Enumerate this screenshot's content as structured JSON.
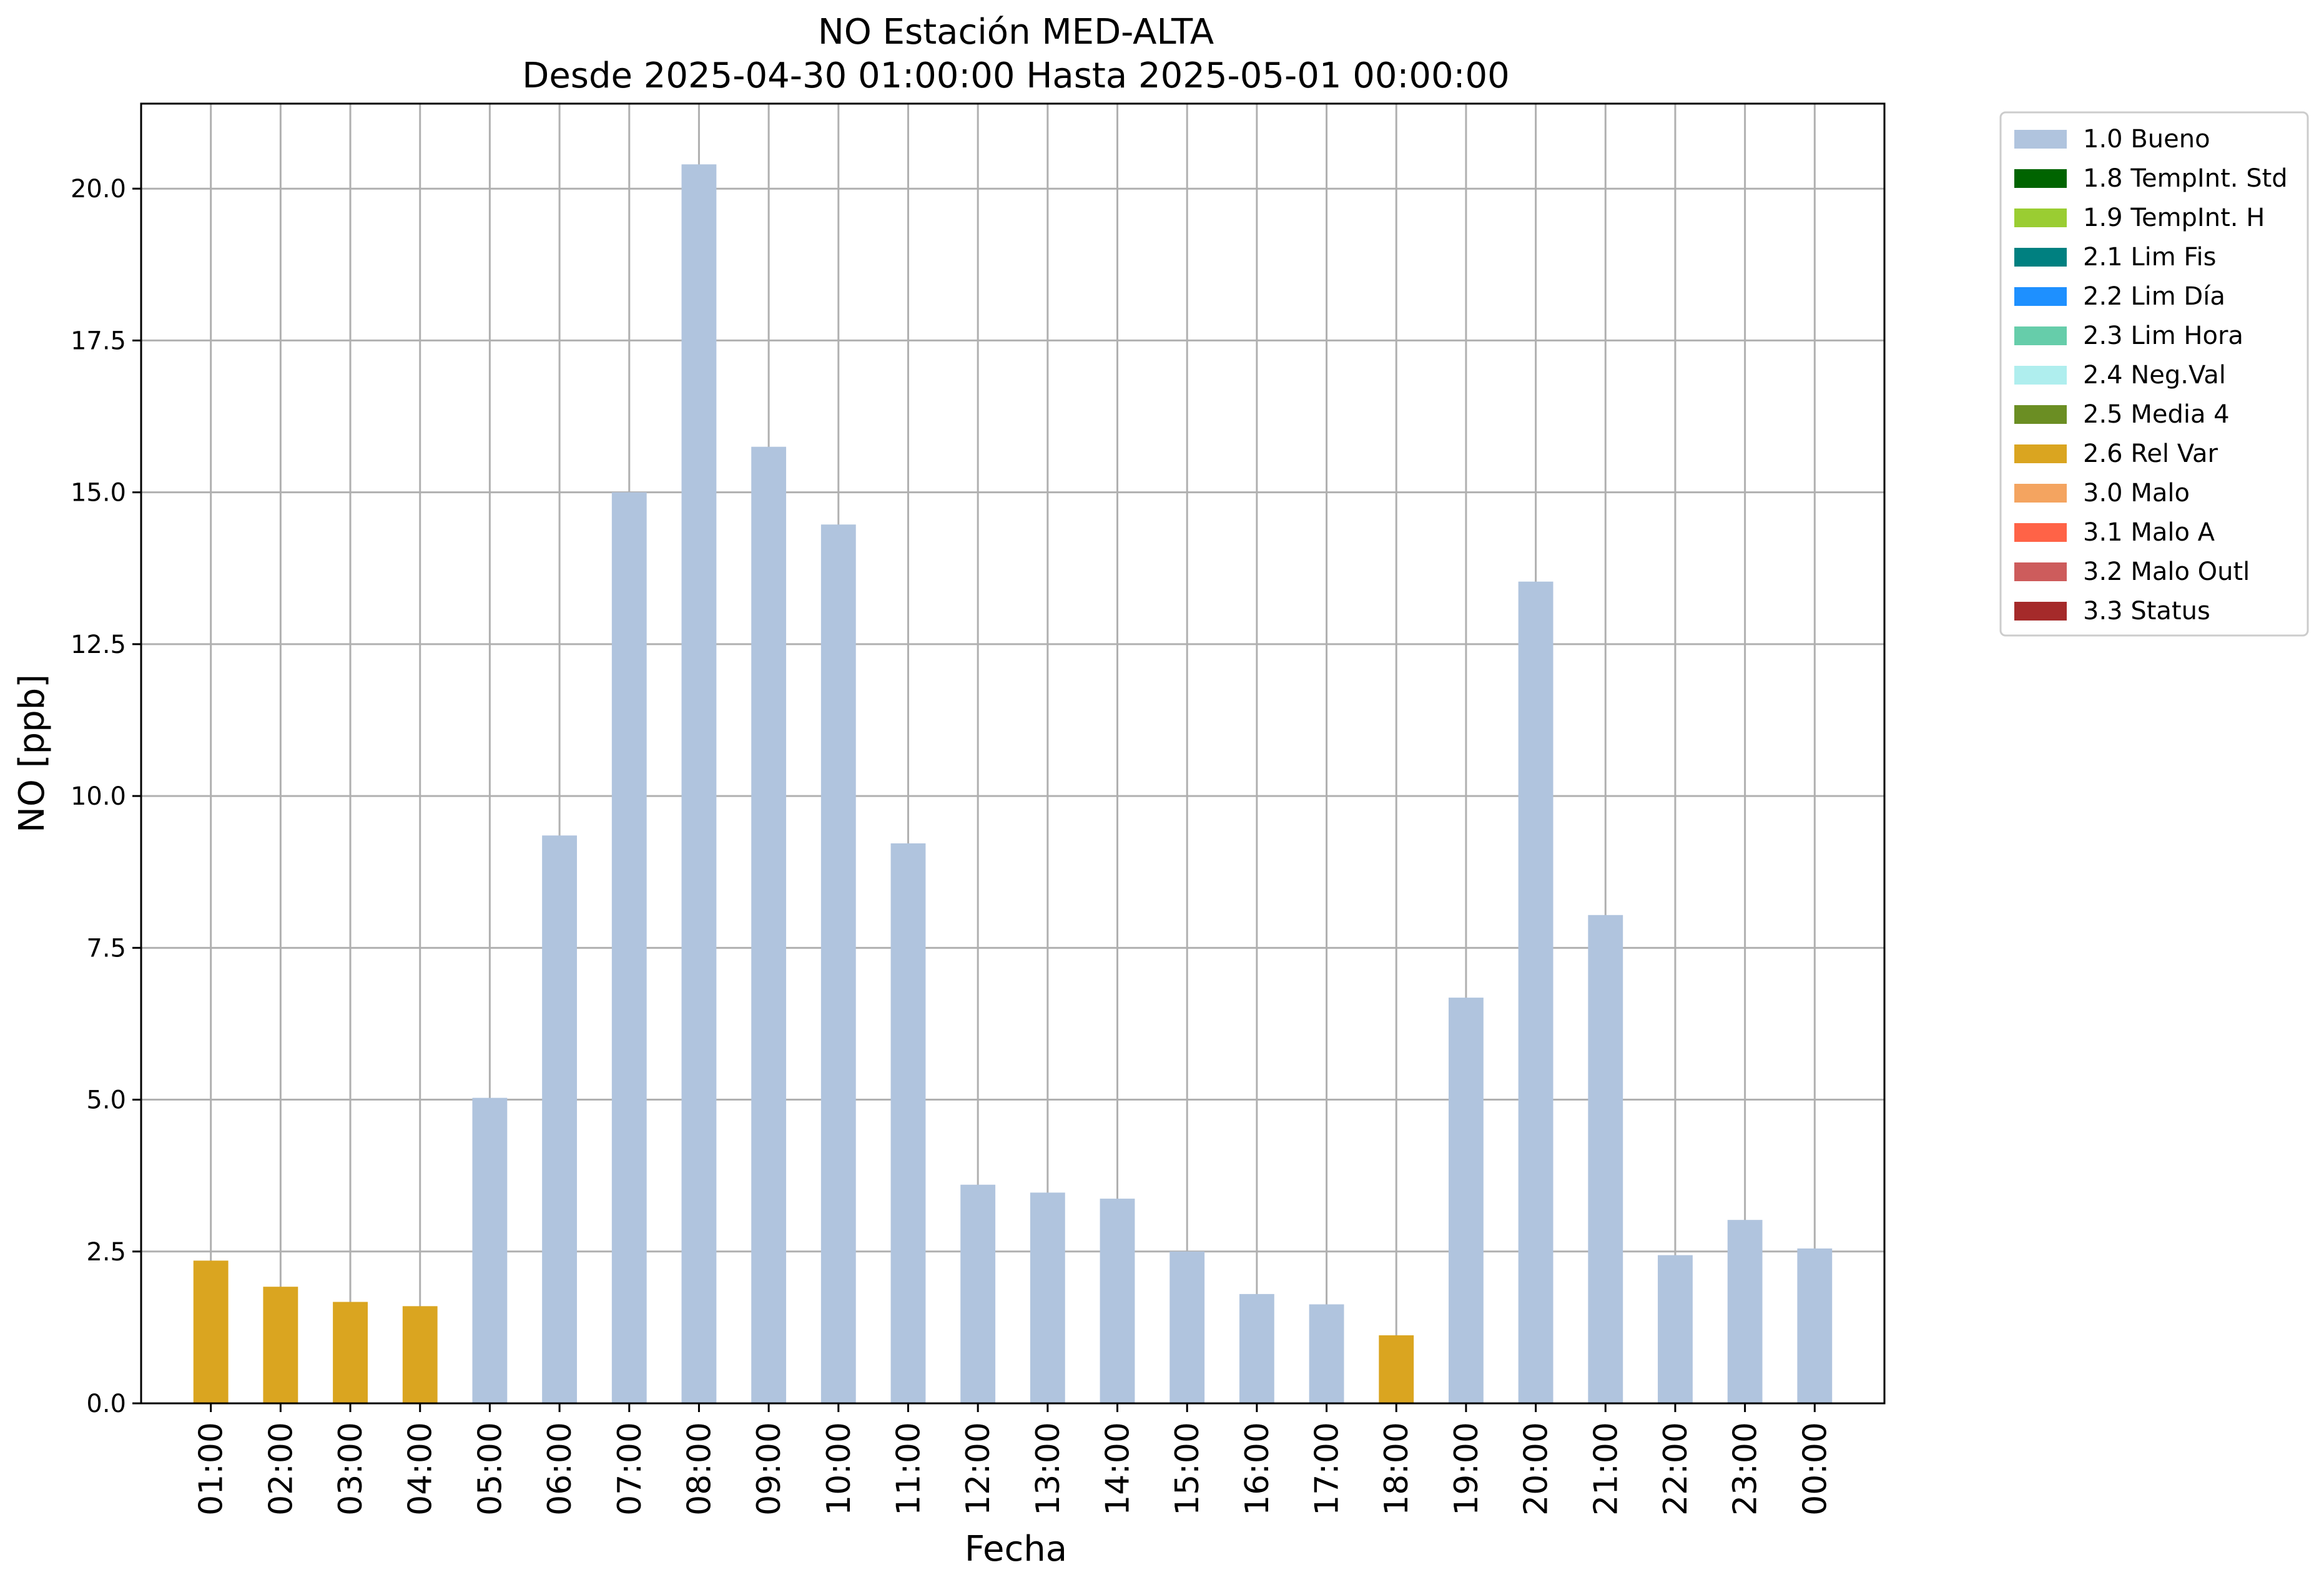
{
  "chart_data": {
    "type": "bar",
    "title": "NO Estación MED-ALTA",
    "subtitle": "Desde 2025-04-30 01:00:00 Hasta 2025-05-01 00:00:00",
    "xlabel": "Fecha",
    "ylabel": "NO [ppb]",
    "ylim": [
      0,
      21.4
    ],
    "yticks": [
      "0.0",
      "2.5",
      "5.0",
      "7.5",
      "10.0",
      "12.5",
      "15.0",
      "17.5",
      "20.0"
    ],
    "categories": [
      "01:00",
      "02:00",
      "03:00",
      "04:00",
      "05:00",
      "06:00",
      "07:00",
      "08:00",
      "09:00",
      "10:00",
      "11:00",
      "12:00",
      "13:00",
      "14:00",
      "15:00",
      "16:00",
      "17:00",
      "18:00",
      "19:00",
      "20:00",
      "21:00",
      "22:00",
      "23:00",
      "00:00"
    ],
    "values": [
      2.35,
      1.92,
      1.67,
      1.6,
      5.03,
      9.35,
      15.0,
      20.4,
      15.75,
      14.47,
      9.22,
      3.6,
      3.47,
      3.37,
      2.5,
      1.8,
      1.63,
      1.12,
      6.68,
      13.53,
      8.04,
      2.44,
      3.02,
      2.55
    ],
    "flags": [
      "2.6 Rel Var",
      "2.6 Rel Var",
      "2.6 Rel Var",
      "2.6 Rel Var",
      "1.0 Bueno",
      "1.0 Bueno",
      "1.0 Bueno",
      "1.0 Bueno",
      "1.0 Bueno",
      "1.0 Bueno",
      "1.0 Bueno",
      "1.0 Bueno",
      "1.0 Bueno",
      "1.0 Bueno",
      "1.0 Bueno",
      "1.0 Bueno",
      "1.0 Bueno",
      "2.6 Rel Var",
      "1.0 Bueno",
      "1.0 Bueno",
      "1.0 Bueno",
      "1.0 Bueno",
      "1.0 Bueno",
      "1.0 Bueno"
    ],
    "grid": true,
    "legend_position": "outside-top-right",
    "legend": [
      {
        "label": "1.0 Bueno",
        "color": "#b0c4de"
      },
      {
        "label": "1.8 TempInt. Std",
        "color": "#006400"
      },
      {
        "label": "1.9 TempInt. H",
        "color": "#9acd32"
      },
      {
        "label": "2.1 Lim Fis",
        "color": "#008080"
      },
      {
        "label": "2.2 Lim Día",
        "color": "#1e90ff"
      },
      {
        "label": "2.3 Lim Hora",
        "color": "#66cdaa"
      },
      {
        "label": "2.4 Neg.Val",
        "color": "#afeeee"
      },
      {
        "label": "2.5 Media 4",
        "color": "#6b8e23"
      },
      {
        "label": "2.6 Rel Var",
        "color": "#daa520"
      },
      {
        "label": "3.0 Malo",
        "color": "#f4a460"
      },
      {
        "label": "3.1 Malo A",
        "color": "#ff6347"
      },
      {
        "label": "3.2 Malo Outl",
        "color": "#cd5c5c"
      },
      {
        "label": "3.3 Status",
        "color": "#a52a2a"
      }
    ]
  }
}
